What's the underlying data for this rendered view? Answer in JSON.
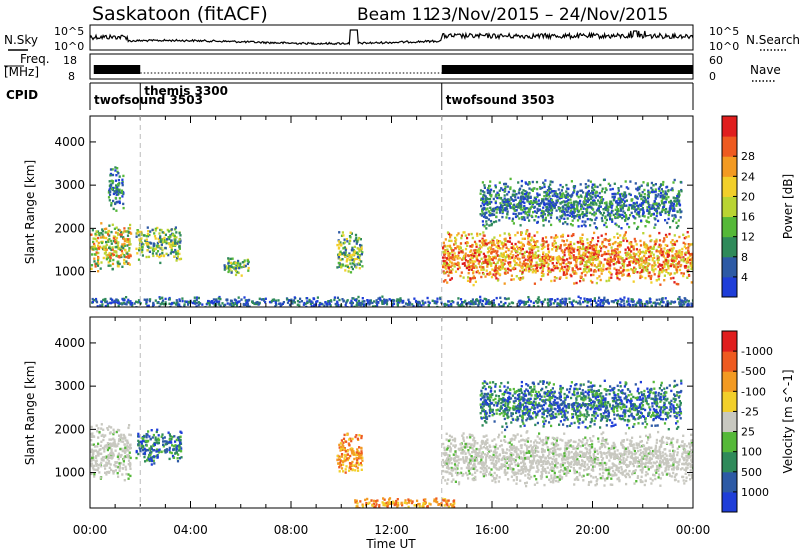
{
  "header": {
    "station": "Saskatoon (fitACF)",
    "beam": "Beam 11",
    "date_range": "23/Nov/2015 – 24/Nov/2015"
  },
  "strip_labels": {
    "nsky": "N.Sky",
    "freq_line1": "Freq.",
    "freq_line2": "[MHz]",
    "cpid": "CPID",
    "nsearch": "N.Search",
    "nave": "Nave",
    "nsky_top": "10^5",
    "nsky_bottom": "10^0",
    "nsearch_top": "10^5",
    "nsearch_bottom": "10^0",
    "freq_top": "18",
    "freq_bottom": "8",
    "nave_top": "60",
    "nave_bottom": "0"
  },
  "cpid_segments": [
    {
      "start_h": 0,
      "end_h": 2,
      "label": "twofsound 3503"
    },
    {
      "start_h": 2,
      "end_h": 14,
      "label": "themis 3300"
    },
    {
      "start_h": 14,
      "end_h": 24,
      "label": "twofsound 3503"
    }
  ],
  "chart_data": [
    {
      "type": "heatmap",
      "title": "",
      "xlabel": "",
      "ylabel": "Slant Range [km]",
      "xlim": [
        0,
        24
      ],
      "ylim": [
        180,
        4600
      ],
      "yticks": [
        1000,
        2000,
        3000,
        4000
      ],
      "colorbar": {
        "label": "Power [dB]",
        "ticks": [
          "4",
          "8",
          "12",
          "16",
          "20",
          "24",
          "28"
        ],
        "colors": [
          "#1f3ed8",
          "#2d5aa5",
          "#2f8a5a",
          "#55b838",
          "#b9d433",
          "#f2cf2a",
          "#f39a22",
          "#ee5a20",
          "#e01e1e"
        ]
      },
      "regions": [
        {
          "t0": 0.0,
          "t1": 1.6,
          "r0": 1000,
          "r1": 2200,
          "level": "medium-high"
        },
        {
          "t0": 0.7,
          "t1": 1.3,
          "r0": 2400,
          "r1": 3500,
          "level": "low-medium"
        },
        {
          "t0": 1.8,
          "t1": 3.6,
          "r0": 1200,
          "r1": 2100,
          "level": "medium"
        },
        {
          "t0": 5.3,
          "t1": 6.3,
          "r0": 900,
          "r1": 1400,
          "level": "medium"
        },
        {
          "t0": 9.8,
          "t1": 10.8,
          "r0": 900,
          "r1": 2000,
          "level": "medium"
        },
        {
          "t0": 14.0,
          "t1": 24.0,
          "r0": 700,
          "r1": 2000,
          "level": "high"
        },
        {
          "t0": 15.5,
          "t1": 23.5,
          "r0": 2000,
          "r1": 3200,
          "level": "low-medium"
        },
        {
          "t0": 0.0,
          "t1": 24.0,
          "r0": 180,
          "r1": 450,
          "level": "low"
        }
      ]
    },
    {
      "type": "heatmap",
      "title": "",
      "xlabel": "Time UT",
      "ylabel": "Slant Range [km]",
      "xlim": [
        0,
        24
      ],
      "ylim": [
        180,
        4600
      ],
      "xticks": [
        "00:00",
        "04:00",
        "08:00",
        "12:00",
        "16:00",
        "20:00",
        "00:00"
      ],
      "yticks": [
        1000,
        2000,
        3000,
        4000
      ],
      "colorbar": {
        "label": "Velocity [m s^-1]",
        "ticks": [
          "1000",
          "500",
          "100",
          "25",
          "-25",
          "-100",
          "-500",
          "-1000"
        ],
        "colors": [
          "#1f3ed8",
          "#2d5aa5",
          "#2f8a5a",
          "#55b838",
          "#c8c8c0",
          "#f2cf2a",
          "#f39a22",
          "#ee5a20",
          "#e01e1e"
        ]
      },
      "regions": [
        {
          "t0": 0.0,
          "t1": 1.6,
          "r0": 800,
          "r1": 2200,
          "level": "ground-scatter"
        },
        {
          "t0": 1.8,
          "t1": 3.6,
          "r0": 1200,
          "r1": 2100,
          "level": "positive"
        },
        {
          "t0": 9.8,
          "t1": 10.8,
          "r0": 900,
          "r1": 2000,
          "level": "negative"
        },
        {
          "t0": 14.0,
          "t1": 24.0,
          "r0": 700,
          "r1": 2000,
          "level": "ground-scatter"
        },
        {
          "t0": 15.5,
          "t1": 23.5,
          "r0": 2000,
          "r1": 3200,
          "level": "positive"
        },
        {
          "t0": 10.5,
          "t1": 14.5,
          "r0": 180,
          "r1": 450,
          "level": "negative"
        }
      ]
    }
  ]
}
